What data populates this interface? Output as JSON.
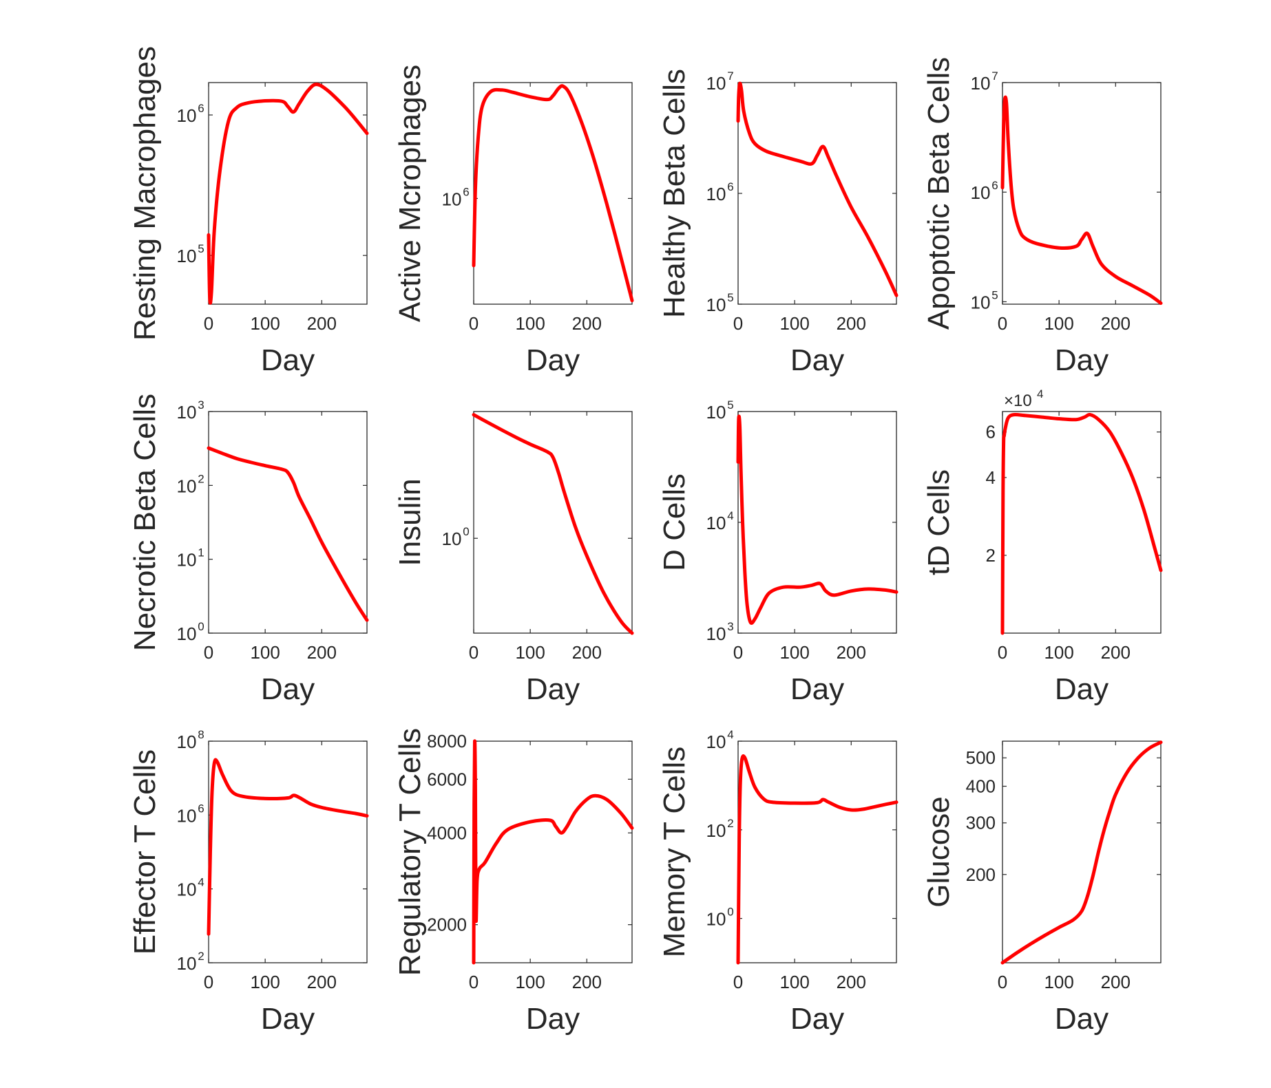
{
  "colors": {
    "series": "#ff0000",
    "axis": "#262626",
    "background": "#ffffff"
  },
  "chart_data": [
    {
      "type": "line",
      "ylabel": "Resting Macrophages",
      "xlabel": "Day",
      "xlim": [
        0,
        280
      ],
      "xticks": [
        0,
        100,
        200
      ],
      "yscale": "log",
      "ylim": [
        45000,
        1700000
      ],
      "yticks": [
        {
          "base": "10",
          "exp": "5",
          "v": 100000
        },
        {
          "base": "10",
          "exp": "6",
          "v": 1000000
        }
      ],
      "series": [
        {
          "x": [
            0,
            2,
            5,
            10,
            20,
            35,
            50,
            70,
            100,
            130,
            140,
            150,
            160,
            175,
            190,
            210,
            240,
            260,
            280
          ],
          "y": [
            140000,
            50000,
            55000,
            150000,
            400000,
            900000,
            1130000,
            1220000,
            1260000,
            1250000,
            1150000,
            1050000,
            1200000,
            1480000,
            1650000,
            1500000,
            1150000,
            930000,
            740000
          ]
        }
      ]
    },
    {
      "type": "line",
      "ylabel": "Active Mcrophages",
      "xlabel": "Day",
      "xlim": [
        0,
        280
      ],
      "xticks": [
        0,
        100,
        200
      ],
      "yscale": "log",
      "ylim": [
        150000,
        8000000
      ],
      "yticks": [
        {
          "base": "10",
          "exp": "6",
          "v": 1000000
        }
      ],
      "series": [
        {
          "x": [
            0,
            3,
            8,
            15,
            30,
            50,
            70,
            100,
            130,
            140,
            150,
            158,
            170,
            190,
            210,
            230,
            250,
            280
          ],
          "y": [
            300000,
            1200000,
            3000000,
            5200000,
            6800000,
            7000000,
            6700000,
            6200000,
            5900000,
            6300000,
            7200000,
            7500000,
            6500000,
            4000000,
            2200000,
            1100000,
            520000,
            160000
          ]
        }
      ]
    },
    {
      "type": "line",
      "ylabel": "Healthy Beta Cells",
      "xlabel": "Day",
      "xlim": [
        0,
        280
      ],
      "xticks": [
        0,
        100,
        200
      ],
      "yscale": "log",
      "ylim": [
        100000,
        10000000
      ],
      "yticks": [
        {
          "base": "10",
          "exp": "5",
          "v": 100000
        },
        {
          "base": "10",
          "exp": "6",
          "v": 1000000
        },
        {
          "base": "10",
          "exp": "7",
          "v": 10000000
        }
      ],
      "series": [
        {
          "x": [
            0,
            1,
            3,
            6,
            10,
            20,
            30,
            50,
            80,
            110,
            130,
            140,
            150,
            160,
            175,
            200,
            230,
            260,
            280
          ],
          "y": [
            4500000,
            7500000,
            9800000,
            8500000,
            5500000,
            3500000,
            2800000,
            2400000,
            2150000,
            1950000,
            1850000,
            2200000,
            2650000,
            2100000,
            1400000,
            750000,
            400000,
            200000,
            120000
          ]
        }
      ]
    },
    {
      "type": "line",
      "ylabel": "Apoptotic Beta Cells",
      "xlabel": "Day",
      "xlim": [
        0,
        280
      ],
      "xticks": [
        0,
        100,
        200
      ],
      "yscale": "log",
      "ylim": [
        95000,
        10000000
      ],
      "yticks": [
        {
          "base": "10",
          "exp": "5",
          "v": 100000
        },
        {
          "base": "10",
          "exp": "6",
          "v": 1000000
        },
        {
          "base": "10",
          "exp": "7",
          "v": 10000000
        }
      ],
      "series": [
        {
          "x": [
            0,
            2,
            4,
            7,
            10,
            15,
            20,
            30,
            40,
            60,
            100,
            130,
            140,
            150,
            160,
            175,
            200,
            230,
            260,
            280
          ],
          "y": [
            1100000,
            4000000,
            7000000,
            6500000,
            3000000,
            1200000,
            700000,
            450000,
            380000,
            340000,
            310000,
            320000,
            370000,
            420000,
            320000,
            220000,
            170000,
            140000,
            115000,
            97000
          ]
        }
      ]
    },
    {
      "type": "line",
      "ylabel": "Necrotic Beta Cells",
      "xlabel": "Day",
      "xlim": [
        0,
        280
      ],
      "xticks": [
        0,
        100,
        200
      ],
      "yscale": "log",
      "ylim": [
        1,
        1000
      ],
      "yticks": [
        {
          "base": "10",
          "exp": "0",
          "v": 1
        },
        {
          "base": "10",
          "exp": "1",
          "v": 10
        },
        {
          "base": "10",
          "exp": "2",
          "v": 100
        },
        {
          "base": "10",
          "exp": "3",
          "v": 1000
        }
      ],
      "series": [
        {
          "x": [
            0,
            25,
            50,
            75,
            100,
            130,
            140,
            150,
            160,
            180,
            200,
            230,
            260,
            280
          ],
          "y": [
            320,
            270,
            230,
            205,
            185,
            165,
            150,
            110,
            70,
            35,
            17,
            6.5,
            2.6,
            1.5
          ]
        }
      ]
    },
    {
      "type": "line",
      "ylabel": "Insulin",
      "xlabel": "Day",
      "xlim": [
        0,
        280
      ],
      "xticks": [
        0,
        100,
        200
      ],
      "yscale": "log",
      "ylim": [
        0.3,
        5
      ],
      "yticks": [
        {
          "base": "10",
          "exp": "0",
          "v": 1
        }
      ],
      "series": [
        {
          "x": [
            0,
            25,
            50,
            75,
            100,
            130,
            140,
            150,
            160,
            180,
            200,
            230,
            260,
            280
          ],
          "y": [
            4.8,
            4.35,
            3.95,
            3.6,
            3.3,
            3.0,
            2.8,
            2.3,
            1.8,
            1.15,
            0.8,
            0.5,
            0.35,
            0.3
          ]
        }
      ]
    },
    {
      "type": "line",
      "ylabel": "D Cells",
      "xlabel": "Day",
      "xlim": [
        0,
        280
      ],
      "xticks": [
        0,
        100,
        200
      ],
      "yscale": "log",
      "ylim": [
        1000,
        100000
      ],
      "yticks": [
        {
          "base": "10",
          "exp": "3",
          "v": 1000
        },
        {
          "base": "10",
          "exp": "4",
          "v": 10000
        },
        {
          "base": "10",
          "exp": "5",
          "v": 100000
        }
      ],
      "series": [
        {
          "x": [
            0,
            1,
            3,
            5,
            8,
            12,
            16,
            22,
            30,
            40,
            55,
            80,
            110,
            130,
            145,
            155,
            170,
            200,
            230,
            260,
            280
          ],
          "y": [
            35000,
            85000,
            75000,
            30000,
            10000,
            3500,
            1800,
            1250,
            1350,
            1700,
            2300,
            2600,
            2600,
            2700,
            2800,
            2400,
            2200,
            2400,
            2500,
            2450,
            2350
          ]
        }
      ]
    },
    {
      "type": "line",
      "ylabel": "tD Cells",
      "xlabel": "Day",
      "xlim": [
        0,
        280
      ],
      "xticks": [
        0,
        100,
        200
      ],
      "yscale": "log",
      "ylim": [
        10000,
        72000
      ],
      "multiplier": {
        "mantissa": "×10",
        "exp": "4"
      },
      "yticks": [
        {
          "label": "2",
          "v": 20000
        },
        {
          "label": "4",
          "v": 40000
        },
        {
          "label": "6",
          "v": 60000
        }
      ],
      "series": [
        {
          "x": [
            0,
            1,
            2,
            3,
            5,
            10,
            20,
            40,
            70,
            100,
            130,
            145,
            155,
            170,
            190,
            210,
            230,
            250,
            270,
            280
          ],
          "y": [
            10000,
            35000,
            55000,
            58000,
            62000,
            68000,
            70000,
            69500,
            68500,
            67500,
            67000,
            68500,
            70000,
            67000,
            60000,
            50000,
            40000,
            30000,
            21000,
            17500
          ]
        }
      ]
    },
    {
      "type": "line",
      "ylabel": "Effector T Cells",
      "xlabel": "Day",
      "xlim": [
        0,
        280
      ],
      "xticks": [
        0,
        100,
        200
      ],
      "yscale": "log",
      "ylim": [
        100,
        100000000
      ],
      "yticks": [
        {
          "base": "10",
          "exp": "2",
          "v": 100
        },
        {
          "base": "10",
          "exp": "4",
          "v": 10000
        },
        {
          "base": "10",
          "exp": "6",
          "v": 1000000
        },
        {
          "base": "10",
          "exp": "8",
          "v": 100000000
        }
      ],
      "series": [
        {
          "x": [
            0,
            3,
            6,
            10,
            15,
            25,
            40,
            60,
            100,
            140,
            150,
            160,
            180,
            200,
            230,
            260,
            280
          ],
          "y": [
            600,
            100000,
            4000000,
            25000000,
            28000000,
            12000000,
            4500000,
            3200000,
            2800000,
            2900000,
            3400000,
            3000000,
            2000000,
            1600000,
            1300000,
            1100000,
            950000
          ]
        }
      ]
    },
    {
      "type": "line",
      "ylabel": "Regulatory T Cells",
      "xlabel": "Day",
      "xlim": [
        0,
        280
      ],
      "xticks": [
        0,
        100,
        200
      ],
      "yscale": "log",
      "ylim": [
        1500,
        8000
      ],
      "yticks": [
        {
          "label": "2000",
          "v": 2000
        },
        {
          "label": "4000",
          "v": 4000
        },
        {
          "label": "6000",
          "v": 6000
        },
        {
          "label": "8000",
          "v": 8000
        }
      ],
      "series": [
        {
          "x": [
            0,
            0.8,
            1.8,
            3,
            4,
            6,
            10,
            20,
            40,
            60,
            100,
            135,
            145,
            155,
            165,
            180,
            200,
            215,
            235,
            260,
            280
          ],
          "y": [
            1500,
            5000,
            8000,
            5500,
            2100,
            2800,
            3050,
            3200,
            3700,
            4100,
            4350,
            4400,
            4200,
            4000,
            4200,
            4700,
            5150,
            5300,
            5150,
            4650,
            4150
          ]
        }
      ]
    },
    {
      "type": "line",
      "ylabel": "Memory T Cells",
      "xlabel": "Day",
      "xlim": [
        0,
        280
      ],
      "xticks": [
        0,
        100,
        200
      ],
      "yscale": "log",
      "ylim": [
        0.1,
        10000
      ],
      "yticks": [
        {
          "base": "10",
          "exp": "0",
          "v": 1
        },
        {
          "base": "10",
          "exp": "2",
          "v": 100
        },
        {
          "base": "10",
          "exp": "4",
          "v": 10000
        }
      ],
      "series": [
        {
          "x": [
            0,
            2,
            4,
            7,
            12,
            20,
            30,
            45,
            60,
            100,
            140,
            150,
            160,
            180,
            200,
            220,
            250,
            280
          ],
          "y": [
            0.1,
            60,
            1200,
            4000,
            4200,
            2000,
            900,
            500,
            420,
            400,
            410,
            480,
            420,
            320,
            280,
            290,
            350,
            420
          ]
        }
      ]
    },
    {
      "type": "line",
      "ylabel": "Glucose",
      "xlabel": "Day",
      "xlim": [
        0,
        280
      ],
      "xticks": [
        0,
        100,
        200
      ],
      "yscale": "log",
      "ylim": [
        100,
        570
      ],
      "yticks": [
        {
          "label": "200",
          "v": 200
        },
        {
          "label": "300",
          "v": 300
        },
        {
          "label": "400",
          "v": 400
        },
        {
          "label": "500",
          "v": 500
        }
      ],
      "series": [
        {
          "x": [
            0,
            25,
            50,
            75,
            100,
            125,
            140,
            150,
            160,
            170,
            180,
            190,
            200,
            220,
            240,
            260,
            280
          ],
          "y": [
            100,
            108,
            116,
            124,
            132,
            140,
            150,
            168,
            198,
            240,
            285,
            330,
            375,
            445,
            500,
            540,
            565
          ]
        }
      ]
    }
  ]
}
